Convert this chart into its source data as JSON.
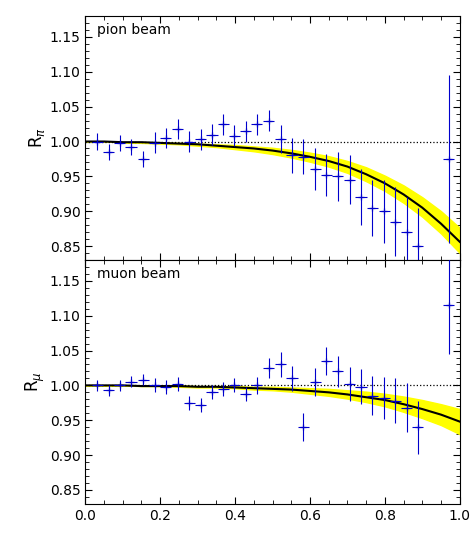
{
  "title_top": "pion beam",
  "title_bottom": "muon beam",
  "ylim": [
    0.83,
    1.18
  ],
  "xlim": [
    0.0,
    1.0
  ],
  "yticks": [
    0.85,
    0.9,
    0.95,
    1.0,
    1.05,
    1.1,
    1.15
  ],
  "background_color": "#ffffff",
  "data_color": "#0000cc",
  "curve_color": "#000000",
  "band_color": "#ffff00",
  "dashed_color": "#000000",
  "pion_data_x": [
    0.032,
    0.062,
    0.092,
    0.122,
    0.155,
    0.185,
    0.215,
    0.247,
    0.278,
    0.308,
    0.338,
    0.368,
    0.398,
    0.428,
    0.458,
    0.49,
    0.522,
    0.552,
    0.582,
    0.614,
    0.644,
    0.674,
    0.706,
    0.736,
    0.766,
    0.798,
    0.828,
    0.858,
    0.888,
    0.97
  ],
  "pion_data_y": [
    1.0,
    0.985,
    0.998,
    0.992,
    0.975,
    0.998,
    1.005,
    1.018,
    1.0,
    1.003,
    1.01,
    1.025,
    1.008,
    1.015,
    1.025,
    1.03,
    1.003,
    0.98,
    0.978,
    0.96,
    0.952,
    0.95,
    0.945,
    0.92,
    0.905,
    0.9,
    0.885,
    0.87,
    0.85,
    0.975
  ],
  "pion_xerr": [
    0.015,
    0.015,
    0.015,
    0.015,
    0.015,
    0.015,
    0.015,
    0.015,
    0.015,
    0.015,
    0.015,
    0.015,
    0.015,
    0.015,
    0.015,
    0.015,
    0.015,
    0.015,
    0.015,
    0.015,
    0.015,
    0.015,
    0.015,
    0.015,
    0.015,
    0.015,
    0.015,
    0.015,
    0.015,
    0.015
  ],
  "pion_yerr": [
    0.012,
    0.012,
    0.012,
    0.012,
    0.012,
    0.015,
    0.015,
    0.015,
    0.015,
    0.015,
    0.015,
    0.015,
    0.015,
    0.015,
    0.015,
    0.015,
    0.02,
    0.025,
    0.025,
    0.03,
    0.03,
    0.035,
    0.035,
    0.04,
    0.04,
    0.045,
    0.05,
    0.05,
    0.055,
    0.12
  ],
  "muon_data_x": [
    0.032,
    0.062,
    0.092,
    0.122,
    0.155,
    0.185,
    0.215,
    0.247,
    0.278,
    0.308,
    0.338,
    0.368,
    0.398,
    0.428,
    0.458,
    0.49,
    0.522,
    0.552,
    0.582,
    0.614,
    0.644,
    0.674,
    0.706,
    0.736,
    0.766,
    0.798,
    0.828,
    0.858,
    0.888,
    0.97
  ],
  "muon_data_y": [
    1.0,
    0.993,
    1.0,
    1.005,
    1.008,
    1.0,
    0.998,
    1.002,
    0.975,
    0.972,
    0.99,
    0.995,
    1.0,
    0.988,
    1.0,
    1.025,
    1.03,
    1.01,
    0.94,
    1.005,
    1.035,
    1.02,
    1.002,
    0.998,
    0.985,
    0.982,
    0.978,
    0.968,
    0.94,
    1.115
  ],
  "muon_xerr": [
    0.015,
    0.015,
    0.015,
    0.015,
    0.015,
    0.015,
    0.015,
    0.015,
    0.015,
    0.015,
    0.015,
    0.015,
    0.015,
    0.015,
    0.015,
    0.015,
    0.015,
    0.015,
    0.015,
    0.015,
    0.015,
    0.015,
    0.015,
    0.015,
    0.015,
    0.015,
    0.015,
    0.015,
    0.015,
    0.015
  ],
  "muon_yerr": [
    0.008,
    0.008,
    0.008,
    0.008,
    0.008,
    0.01,
    0.01,
    0.01,
    0.01,
    0.01,
    0.01,
    0.01,
    0.01,
    0.01,
    0.012,
    0.015,
    0.018,
    0.018,
    0.02,
    0.02,
    0.02,
    0.022,
    0.025,
    0.025,
    0.028,
    0.03,
    0.032,
    0.035,
    0.038,
    0.07
  ],
  "pion_curve_x": [
    0.0,
    0.05,
    0.1,
    0.15,
    0.2,
    0.25,
    0.3,
    0.35,
    0.4,
    0.45,
    0.5,
    0.55,
    0.6,
    0.65,
    0.7,
    0.75,
    0.8,
    0.85,
    0.9,
    0.95,
    1.0
  ],
  "pion_curve_y": [
    1.0,
    1.0,
    0.999,
    0.999,
    0.998,
    0.997,
    0.996,
    0.994,
    0.992,
    0.99,
    0.987,
    0.983,
    0.978,
    0.972,
    0.964,
    0.953,
    0.94,
    0.924,
    0.905,
    0.882,
    0.856
  ],
  "pion_band_upper": [
    1.0,
    1.0,
    0.999,
    0.999,
    0.999,
    0.998,
    0.997,
    0.996,
    0.995,
    0.993,
    0.991,
    0.988,
    0.984,
    0.979,
    0.972,
    0.963,
    0.951,
    0.937,
    0.92,
    0.9,
    0.876
  ],
  "pion_band_lower": [
    1.0,
    1.0,
    0.999,
    0.998,
    0.997,
    0.996,
    0.994,
    0.992,
    0.989,
    0.986,
    0.982,
    0.977,
    0.971,
    0.964,
    0.955,
    0.943,
    0.929,
    0.912,
    0.892,
    0.868,
    0.84
  ],
  "muon_curve_x": [
    0.0,
    0.05,
    0.1,
    0.15,
    0.2,
    0.25,
    0.3,
    0.35,
    0.4,
    0.45,
    0.5,
    0.55,
    0.6,
    0.65,
    0.7,
    0.75,
    0.8,
    0.85,
    0.9,
    0.95,
    1.0
  ],
  "muon_curve_y": [
    1.0,
    1.0,
    1.0,
    0.999,
    0.999,
    0.999,
    0.998,
    0.998,
    0.997,
    0.996,
    0.995,
    0.994,
    0.992,
    0.99,
    0.987,
    0.983,
    0.979,
    0.973,
    0.966,
    0.958,
    0.948
  ],
  "muon_band_upper": [
    1.0,
    1.0,
    1.0,
    1.0,
    1.0,
    1.0,
    0.999,
    0.999,
    0.999,
    0.998,
    0.998,
    0.997,
    0.996,
    0.995,
    0.993,
    0.991,
    0.988,
    0.984,
    0.979,
    0.973,
    0.966
  ],
  "muon_band_lower": [
    1.0,
    1.0,
    1.0,
    0.999,
    0.999,
    0.998,
    0.997,
    0.997,
    0.996,
    0.994,
    0.993,
    0.991,
    0.988,
    0.985,
    0.981,
    0.976,
    0.97,
    0.962,
    0.953,
    0.943,
    0.93
  ]
}
